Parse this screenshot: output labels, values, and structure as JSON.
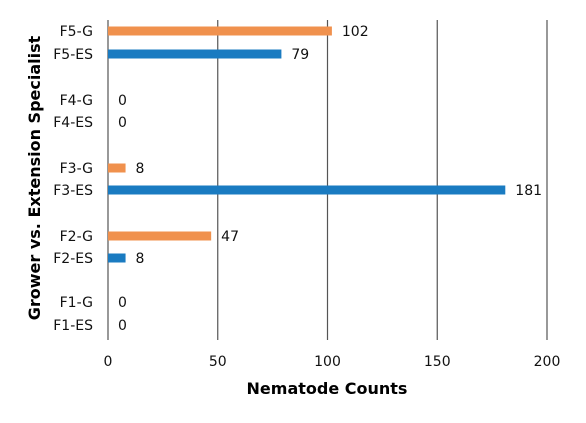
{
  "chart_data": {
    "type": "bar",
    "orientation": "horizontal",
    "xlabel": "Nematode Counts",
    "ylabel": "Grower vs. Extension Specialist",
    "xlim": [
      0,
      200
    ],
    "xticks": [
      0,
      50,
      100,
      150,
      200
    ],
    "grid": "vertical",
    "legend": "none",
    "categories": [
      "F5-G",
      "F5-ES",
      "F4-G",
      "F4-ES",
      "F3-G",
      "F3-ES",
      "F2-G",
      "F2-ES",
      "F1-G",
      "F1-ES"
    ],
    "values": [
      102,
      79,
      0,
      0,
      8,
      181,
      47,
      8,
      0,
      0
    ],
    "bar_colors": [
      "#F0914D",
      "#1A7BC1",
      "#F0914D",
      "#1A7BC1",
      "#F0914D",
      "#1A7BC1",
      "#F0914D",
      "#1A7BC1",
      "#F0914D",
      "#1A7BC1"
    ]
  }
}
